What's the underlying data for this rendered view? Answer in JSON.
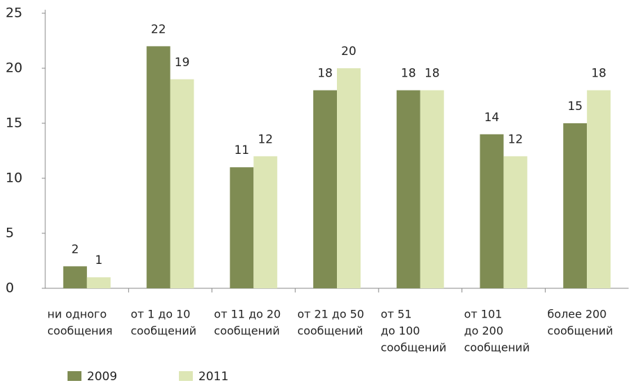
{
  "chart_data": {
    "type": "bar",
    "categories": [
      [
        "ни одного",
        "сообщения"
      ],
      [
        "от 1 до 10",
        "сообщений"
      ],
      [
        "от 11 до 20",
        "сообщений"
      ],
      [
        "от 21 до 50",
        "сообщений"
      ],
      [
        "от 51",
        "до 100",
        "сообщений"
      ],
      [
        "от 101",
        "до 200",
        "сообщений"
      ],
      [
        "более 200",
        "сообщений"
      ]
    ],
    "series": [
      {
        "name": "2009",
        "color": "#7f8c53",
        "values": [
          2,
          22,
          11,
          18,
          18,
          14,
          15
        ]
      },
      {
        "name": "2011",
        "color": "#dde6b5",
        "values": [
          1,
          19,
          12,
          20,
          18,
          12,
          18
        ]
      }
    ],
    "ylim": [
      0,
      25
    ],
    "yticks": [
      0,
      5,
      10,
      15,
      20,
      25
    ],
    "legend": "bottom-left"
  }
}
